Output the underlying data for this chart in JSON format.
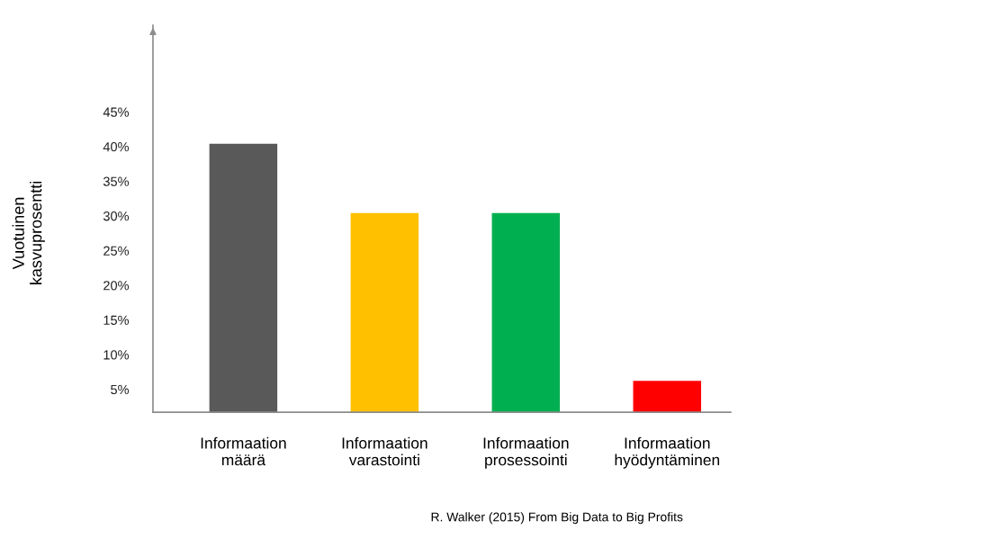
{
  "chart_data": {
    "type": "bar",
    "ylabel": "Vuotuinen\nkasvuprosentti",
    "categories": [
      "Informaation\nmäärä",
      "Informaation\nvarastointi",
      "Informaation\nprosessointi",
      "Informaation\nhyödyntäminen"
    ],
    "values": [
      40.5,
      30.5,
      30.5,
      6.3
    ],
    "colors": [
      "#595959",
      "#ffc000",
      "#00b050",
      "#ff0000"
    ],
    "ylim": [
      1.7,
      57.5
    ],
    "yticks": [
      {
        "value": 5,
        "label": "5%"
      },
      {
        "value": 10,
        "label": "10%"
      },
      {
        "value": 15,
        "label": "15%"
      },
      {
        "value": 20,
        "label": "20%"
      },
      {
        "value": 25,
        "label": "25%"
      },
      {
        "value": 30,
        "label": "30%"
      },
      {
        "value": 35,
        "label": "35%"
      },
      {
        "value": 40,
        "label": "40%"
      },
      {
        "value": 45,
        "label": "45%"
      }
    ],
    "grid": false,
    "annotations": [
      "R. Walker (2015) From Big Data to Big Profits"
    ]
  }
}
